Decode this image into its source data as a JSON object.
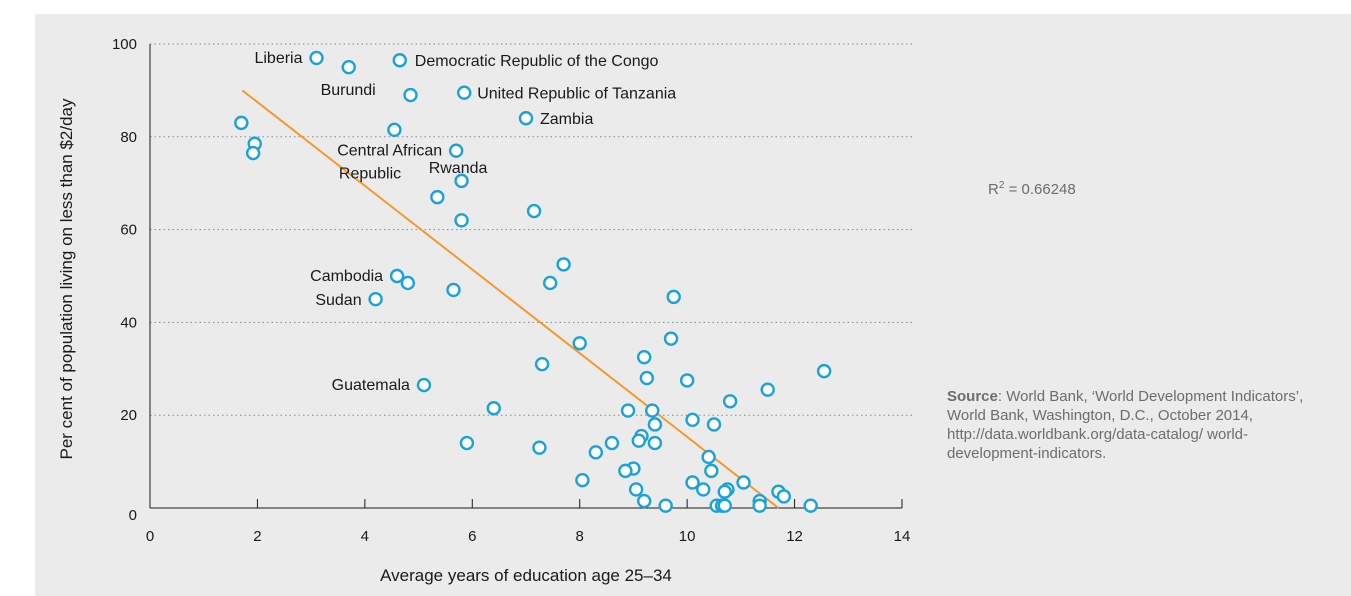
{
  "chart_data": {
    "type": "scatter",
    "xlabel": "Average years of education age 25–34",
    "ylabel": "Per cent of population living on less than $2/day",
    "xlim": [
      0,
      14
    ],
    "ylim": [
      0,
      100
    ],
    "xticks": [
      "0",
      "2",
      "4",
      "6",
      "8",
      "10",
      "12",
      "14"
    ],
    "yticks": [
      "0",
      "20",
      "40",
      "60",
      "80",
      "100"
    ],
    "grid": "horizontal dotted",
    "marker_color": "#1aa3d9",
    "trend_color": "#f39a2b",
    "trendline": {
      "x": [
        1.72,
        11.7
      ],
      "y": [
        90,
        0
      ]
    },
    "r_squared": {
      "prefix": "R",
      "sup": "2",
      "value": " = 0.66248"
    },
    "points": [
      {
        "x": 3.1,
        "y": 97,
        "label": "Liberia"
      },
      {
        "x": 3.7,
        "y": 95,
        "label": "Burundi"
      },
      {
        "x": 4.65,
        "y": 96.5,
        "label": "Democratic Republic of the Congo"
      },
      {
        "x": 4.85,
        "y": 89,
        "label": ""
      },
      {
        "x": 5.85,
        "y": 89.5,
        "label": "United Republic of Tanzania"
      },
      {
        "x": 4.55,
        "y": 81.5,
        "label": "Rwanda"
      },
      {
        "x": 7.0,
        "y": 84,
        "label": "Zambia"
      },
      {
        "x": 1.7,
        "y": 83,
        "label": ""
      },
      {
        "x": 1.95,
        "y": 78.5,
        "label": ""
      },
      {
        "x": 1.92,
        "y": 76.5,
        "label": ""
      },
      {
        "x": 5.7,
        "y": 77,
        "label": "Central African Republic"
      },
      {
        "x": 5.8,
        "y": 70.5,
        "label": ""
      },
      {
        "x": 5.35,
        "y": 67,
        "label": ""
      },
      {
        "x": 7.15,
        "y": 64,
        "label": ""
      },
      {
        "x": 5.8,
        "y": 62,
        "label": ""
      },
      {
        "x": 7.7,
        "y": 52.5,
        "label": ""
      },
      {
        "x": 4.6,
        "y": 50,
        "label": "Cambodia"
      },
      {
        "x": 4.8,
        "y": 48.5,
        "label": ""
      },
      {
        "x": 7.45,
        "y": 48.5,
        "label": ""
      },
      {
        "x": 5.65,
        "y": 47,
        "label": ""
      },
      {
        "x": 9.75,
        "y": 45.5,
        "label": ""
      },
      {
        "x": 4.2,
        "y": 45,
        "label": "Sudan"
      },
      {
        "x": 9.7,
        "y": 36.5,
        "label": ""
      },
      {
        "x": 8.0,
        "y": 35.5,
        "label": ""
      },
      {
        "x": 9.2,
        "y": 32.5,
        "label": ""
      },
      {
        "x": 7.3,
        "y": 31,
        "label": ""
      },
      {
        "x": 12.55,
        "y": 29.5,
        "label": ""
      },
      {
        "x": 9.25,
        "y": 28,
        "label": ""
      },
      {
        "x": 10.0,
        "y": 27.5,
        "label": ""
      },
      {
        "x": 5.1,
        "y": 26.5,
        "label": "Guatemala"
      },
      {
        "x": 11.5,
        "y": 25.5,
        "label": ""
      },
      {
        "x": 10.8,
        "y": 23,
        "label": ""
      },
      {
        "x": 6.4,
        "y": 21.5,
        "label": ""
      },
      {
        "x": 8.9,
        "y": 21,
        "label": ""
      },
      {
        "x": 9.35,
        "y": 21,
        "label": ""
      },
      {
        "x": 10.1,
        "y": 19,
        "label": ""
      },
      {
        "x": 9.4,
        "y": 18,
        "label": ""
      },
      {
        "x": 10.5,
        "y": 18,
        "label": ""
      },
      {
        "x": 9.15,
        "y": 15.5,
        "label": ""
      },
      {
        "x": 9.1,
        "y": 14.5,
        "label": ""
      },
      {
        "x": 9.4,
        "y": 14,
        "label": ""
      },
      {
        "x": 5.9,
        "y": 14,
        "label": ""
      },
      {
        "x": 8.6,
        "y": 14,
        "label": ""
      },
      {
        "x": 7.25,
        "y": 13,
        "label": ""
      },
      {
        "x": 8.3,
        "y": 12,
        "label": ""
      },
      {
        "x": 10.4,
        "y": 11,
        "label": ""
      },
      {
        "x": 9.0,
        "y": 8.5,
        "label": ""
      },
      {
        "x": 8.85,
        "y": 8,
        "label": ""
      },
      {
        "x": 10.45,
        "y": 8,
        "label": ""
      },
      {
        "x": 8.05,
        "y": 6,
        "label": ""
      },
      {
        "x": 10.1,
        "y": 5.5,
        "label": ""
      },
      {
        "x": 11.05,
        "y": 5.5,
        "label": ""
      },
      {
        "x": 9.05,
        "y": 4,
        "label": ""
      },
      {
        "x": 10.3,
        "y": 4,
        "label": ""
      },
      {
        "x": 10.75,
        "y": 4,
        "label": ""
      },
      {
        "x": 10.7,
        "y": 3.5,
        "label": ""
      },
      {
        "x": 11.7,
        "y": 3.5,
        "label": ""
      },
      {
        "x": 11.8,
        "y": 2.5,
        "label": ""
      },
      {
        "x": 9.2,
        "y": 1.5,
        "label": ""
      },
      {
        "x": 11.35,
        "y": 1.5,
        "label": ""
      },
      {
        "x": 10.55,
        "y": 0.5,
        "label": ""
      },
      {
        "x": 10.65,
        "y": 0.5,
        "label": ""
      },
      {
        "x": 9.6,
        "y": 0.5,
        "label": ""
      },
      {
        "x": 10.7,
        "y": 0.5,
        "label": ""
      },
      {
        "x": 11.35,
        "y": 0.5,
        "label": ""
      },
      {
        "x": 12.3,
        "y": 0.5,
        "label": ""
      }
    ]
  },
  "source": {
    "label": "Source",
    "text": ": World Bank, ‘World Development Indicators’, World Bank, Washington, D.C., October 2014, http://data.worldbank.org/data-catalog/ world-development-indicators."
  }
}
